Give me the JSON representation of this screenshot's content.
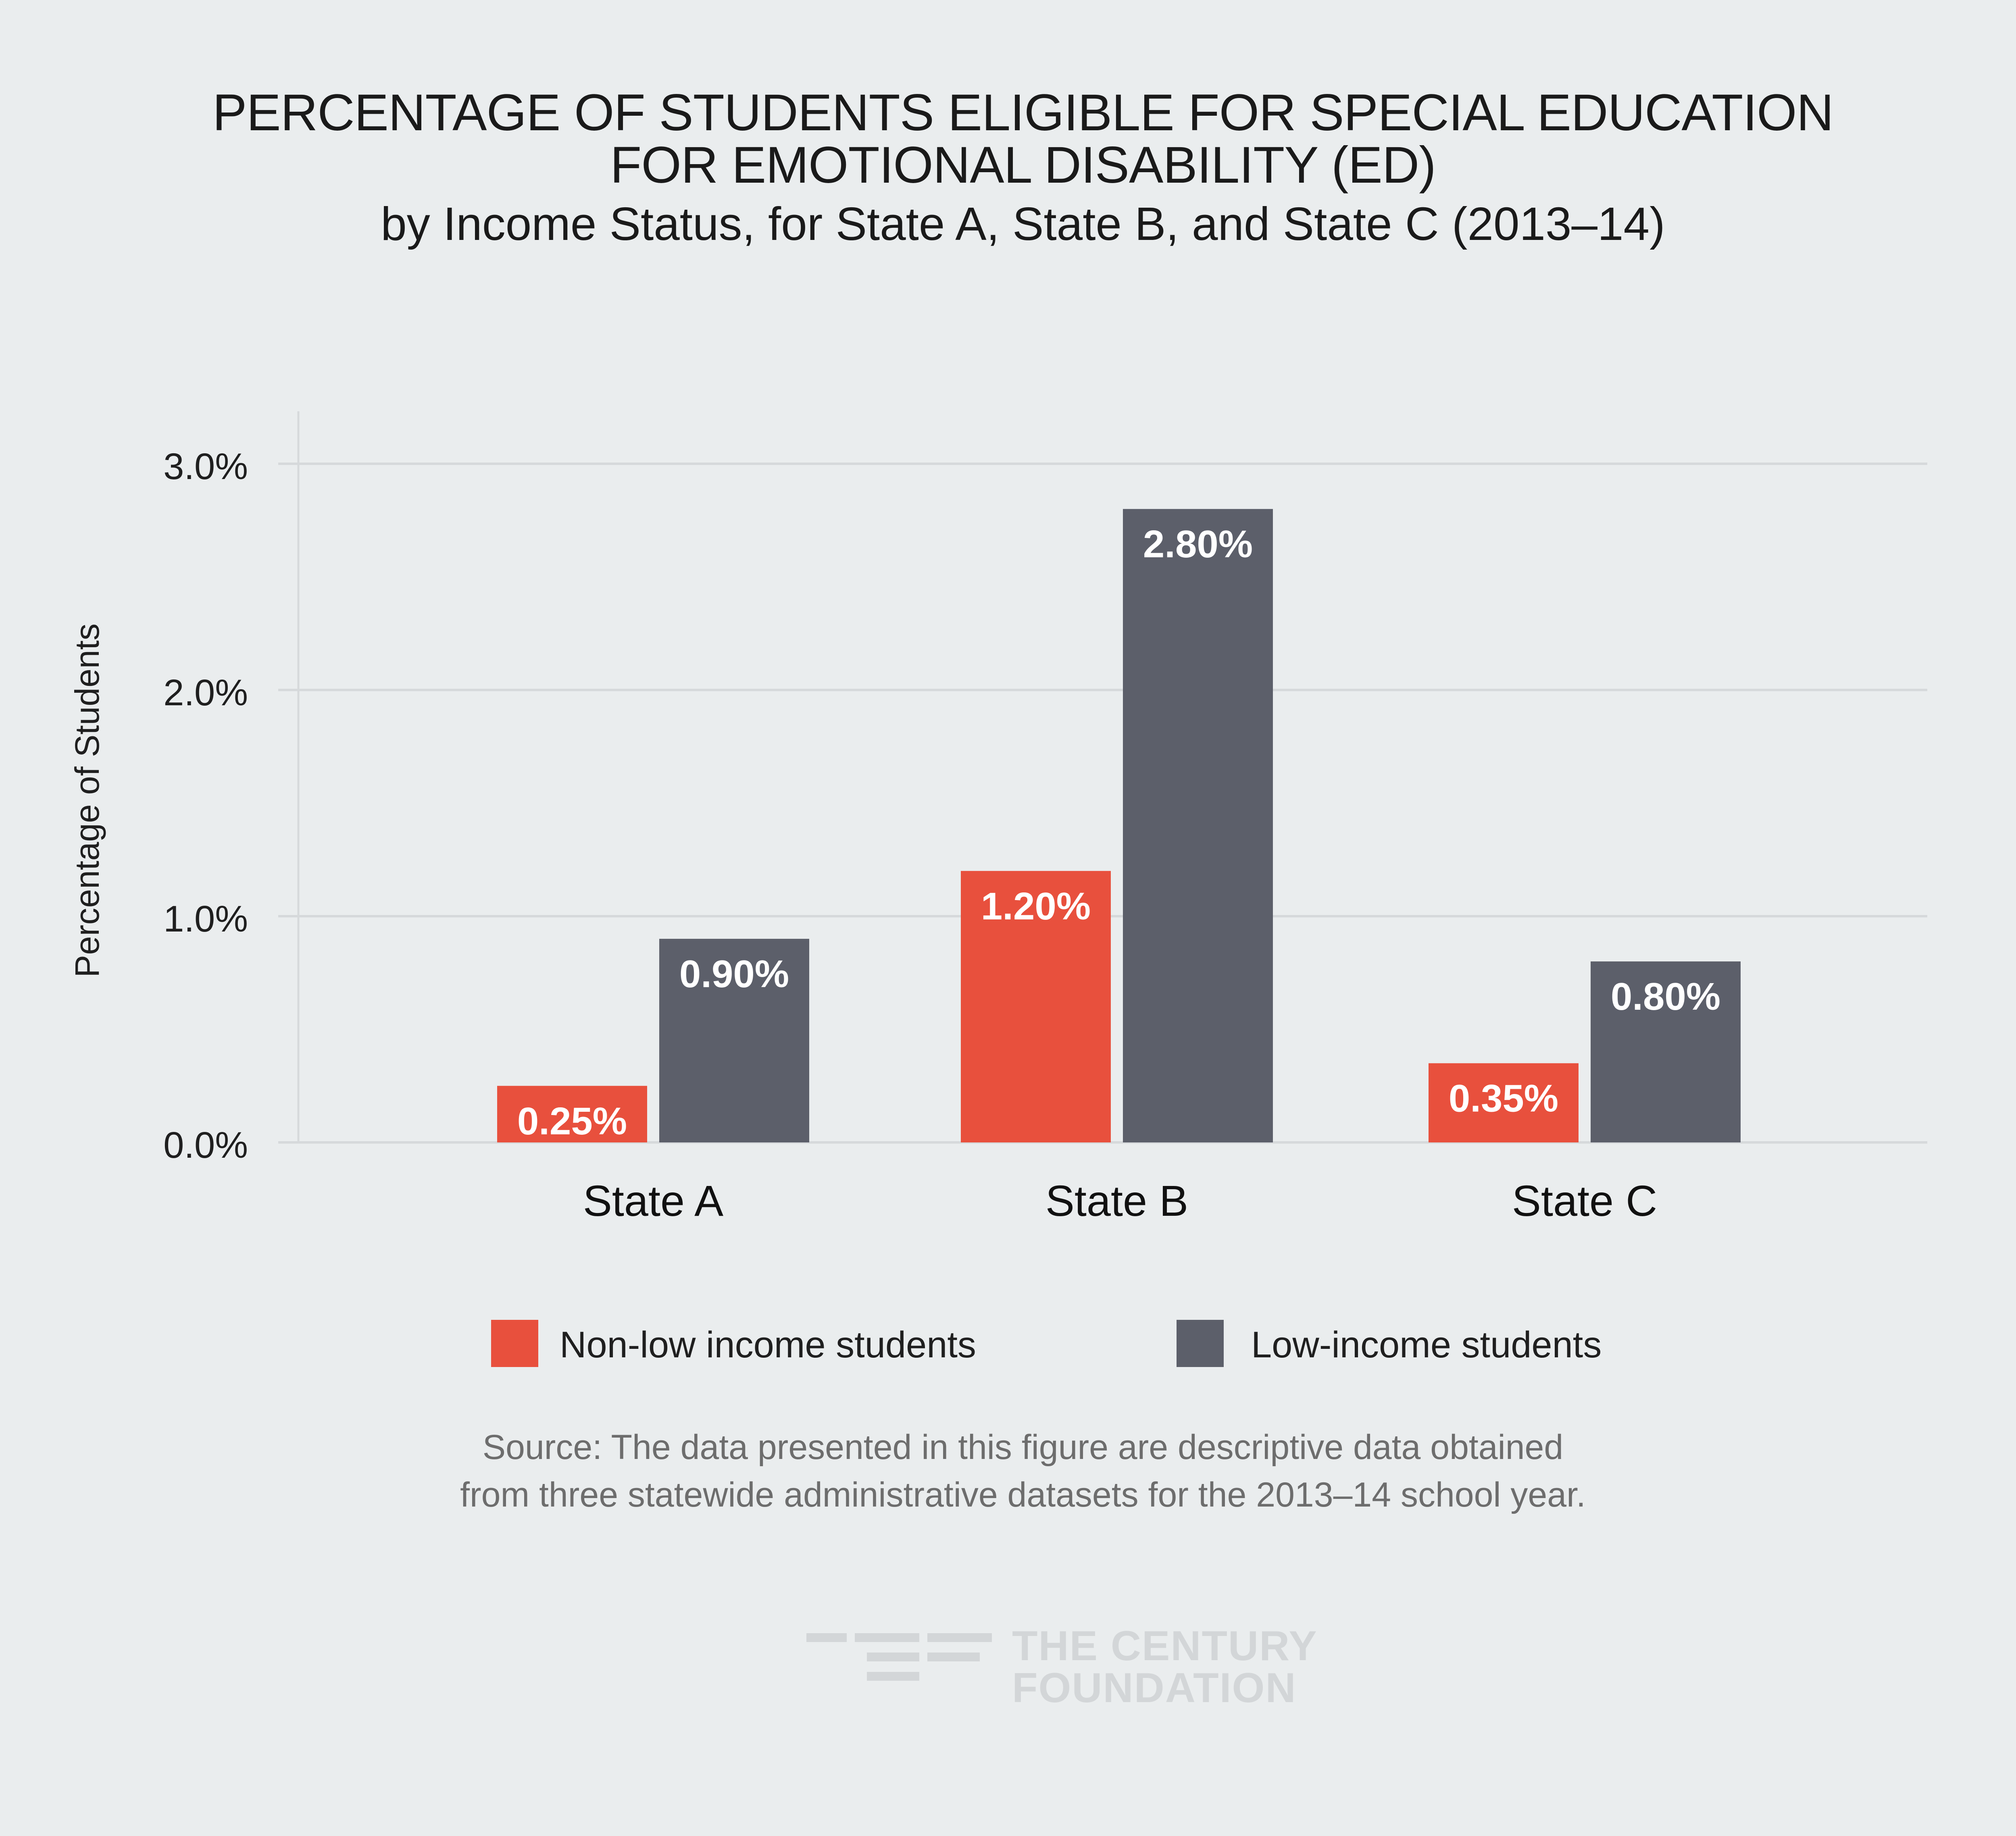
{
  "title": {
    "line1": "PERCENTAGE OF STUDENTS ELIGIBLE FOR SPECIAL EDUCATION",
    "line2": "FOR EMOTIONAL DISABILITY (ED)",
    "subtitle": "by Income Status, for State A, State B, and State C (2013–14)"
  },
  "chart_data": {
    "type": "bar",
    "categories": [
      "State A",
      "State B",
      "State C"
    ],
    "series": [
      {
        "name": "Non-low income students",
        "values": [
          0.25,
          1.2,
          0.35
        ],
        "labels": [
          "0.25%",
          "1.20%",
          "0.35%"
        ],
        "color": "#e8503d"
      },
      {
        "name": "Low-income students",
        "values": [
          0.9,
          2.8,
          0.8
        ],
        "labels": [
          "0.90%",
          "2.80%",
          "0.80%"
        ],
        "color": "#5c5f6a"
      }
    ],
    "ylabel": "Percentage of Students",
    "ylim": [
      0,
      3.0
    ],
    "yticks": [
      0,
      1,
      2,
      3
    ],
    "ytick_labels": [
      "0.0%",
      "1.0%",
      "2.0%",
      "3.0%"
    ],
    "grid": true,
    "legend_position": "bottom"
  },
  "legend": {
    "items": [
      {
        "label": "Non-low income students",
        "color": "#e8503d"
      },
      {
        "label": "Low-income students",
        "color": "#5c5f6a"
      }
    ]
  },
  "source": {
    "line1": "Source: The data presented in this figure are descriptive data obtained",
    "line2": "from three statewide administrative datasets for the 2013–14 school year."
  },
  "logo": {
    "line1": "THE CENTURY",
    "line2": "FOUNDATION"
  },
  "colors": {
    "background": "#eaedee",
    "gridline": "#d6d9db",
    "bar_label_text": "#ffffff",
    "logo": "#d3d6d8"
  }
}
